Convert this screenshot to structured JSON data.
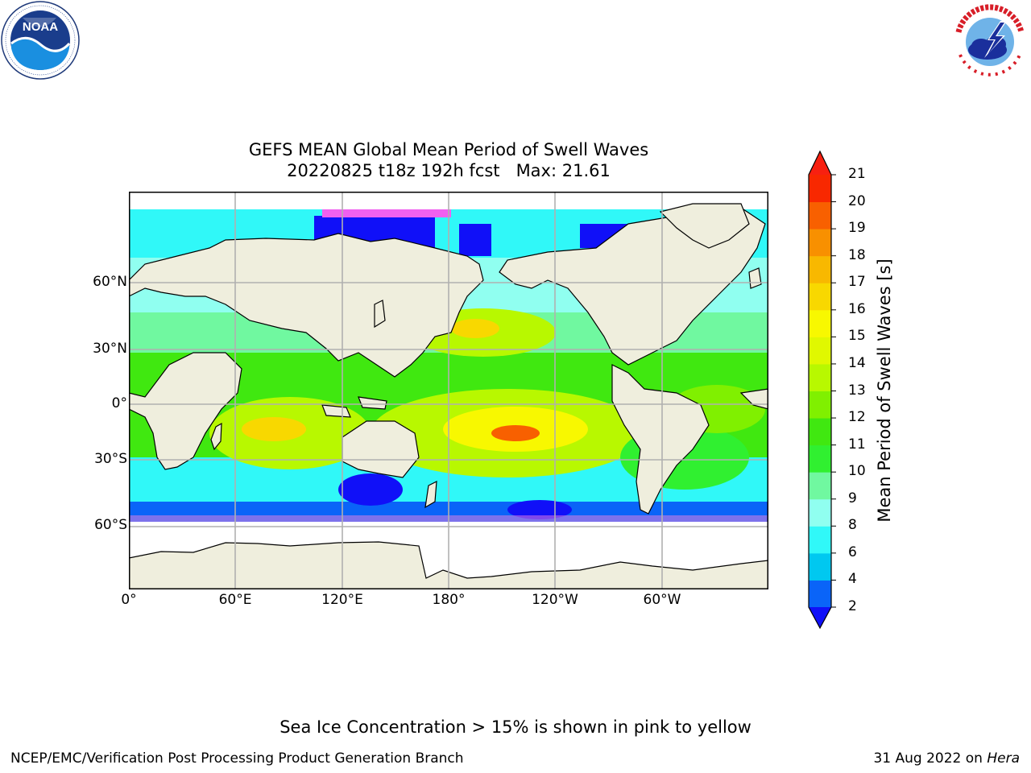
{
  "logos": {
    "left": {
      "text": "NOAA",
      "ring_text": "NATIONAL OCEANIC AND ATMOSPHERIC ADMINISTRATION · U.S. DEPARTMENT OF COMMERCE"
    },
    "right": {
      "ring_text": "NATIONAL WEATHER SERVICE"
    }
  },
  "title": {
    "line1": "GEFS MEAN Global Mean Period of Swell Waves",
    "line2": "20220825 t18z 192h fcst   Max: 21.61"
  },
  "map": {
    "lat_labels": [
      "60°N",
      "30°N",
      "0°",
      "30°S",
      "60°S"
    ],
    "lon_labels": [
      "0°",
      "60°E",
      "120°E",
      "180°",
      "120°W",
      "60°W"
    ]
  },
  "colorbar": {
    "title": "Mean Period of Swell Waves [s]",
    "ticks": [
      "2",
      "4",
      "6",
      "8",
      "9",
      "10",
      "11",
      "12",
      "13",
      "14",
      "15",
      "16",
      "17",
      "18",
      "19",
      "20",
      "21"
    ],
    "colors": [
      "#0a64f8",
      "#00c8f0",
      "#30f8f8",
      "#90fff0",
      "#70f8a0",
      "#30f030",
      "#40e810",
      "#80f000",
      "#b8f800",
      "#e0f800",
      "#f8f800",
      "#f8d800",
      "#f8b800",
      "#f89000",
      "#f86000",
      "#f82800"
    ],
    "under_color": "#1010f8",
    "over_color": "#f82010"
  },
  "note": "Sea Ice Concentration > 15% is shown in pink to yellow",
  "footer": {
    "left": "NCEP/EMC/Verification Post Processing Product Generation Branch",
    "right_prefix": "31 Aug 2022 on ",
    "right_italic": "Hera"
  }
}
